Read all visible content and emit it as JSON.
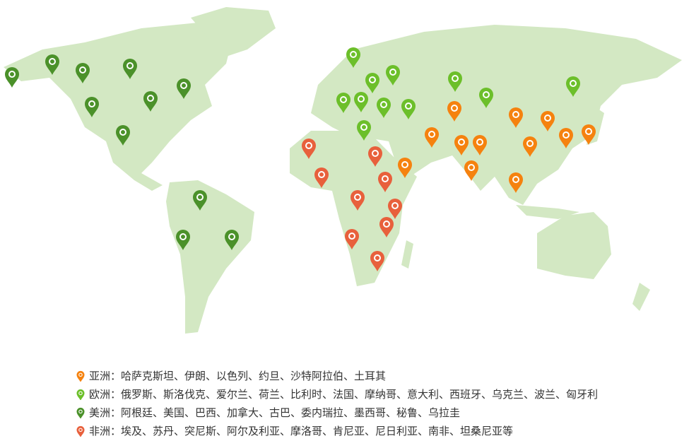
{
  "colors": {
    "land": "#d3e8c3",
    "asia": "#f5820f",
    "europe": "#6cbf2a",
    "americas": "#4b912a",
    "africa": "#e8603c"
  },
  "legend": [
    {
      "key": "asia",
      "label": "亚洲：",
      "text": "哈萨克斯坦、伊朗、以色列、约旦、沙特阿拉伯、土耳其",
      "icon": "map-pin-icon"
    },
    {
      "key": "europe",
      "label": "欧洲：",
      "text": "俄罗斯、斯洛伐克、爱尔兰、荷兰、比利时、法国、摩纳哥、意大利、西班牙、乌克兰、波兰、匈牙利",
      "icon": "map-pin-icon"
    },
    {
      "key": "americas",
      "label": "美洲：",
      "text": "阿根廷、美国、巴西、加拿大、古巴、委内瑞拉、墨西哥、秘鲁、乌拉圭",
      "icon": "map-pin-icon"
    },
    {
      "key": "africa",
      "label": "非洲：",
      "text": "埃及、苏丹、突尼斯、阿尔及利亚、摩洛哥、肯尼亚、尼日利亚、南非、坦桑尼亚等",
      "icon": "map-pin-icon"
    }
  ]
}
